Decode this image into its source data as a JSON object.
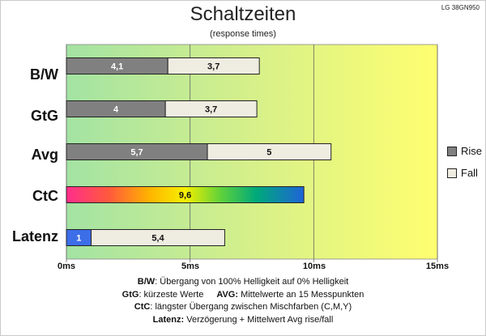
{
  "model": "LG 38GN950",
  "chart_data": {
    "type": "bar",
    "orientation": "horizontal",
    "stacked": true,
    "title": "Schaltzeiten",
    "subtitle": "(response times)",
    "categories": [
      "B/W",
      "GtG",
      "Avg",
      "CtC",
      "Latenz"
    ],
    "series": [
      {
        "name": "Rise",
        "values": [
          4.1,
          4,
          5.7,
          null,
          1
        ],
        "labels": [
          "4,1",
          "4",
          "5,7",
          "",
          "1"
        ]
      },
      {
        "name": "Fall",
        "values": [
          3.7,
          3.7,
          5,
          null,
          5.4
        ],
        "labels": [
          "3,7",
          "3,7",
          "5",
          "",
          "5,4"
        ]
      },
      {
        "name": "",
        "values": [
          null,
          null,
          null,
          9.6,
          null
        ],
        "labels": [
          "",
          "",
          "",
          "9,6",
          ""
        ]
      }
    ],
    "xlim": [
      0,
      15
    ],
    "xticks": [
      "0ms",
      "5ms",
      "10ms",
      "15ms"
    ],
    "grid": "vertical",
    "legend": "right",
    "colors": {
      "rise": "#808080",
      "fall": "#efece1",
      "latency_rise": "#3c6ee8",
      "background_from": "#a3e3a3",
      "background_to": "#ffff70"
    }
  },
  "notes": {
    "bw_key": "B/W",
    "bw_text": ":  Übergang von 100% Helligkeit auf 0% Helligkeit",
    "gtg_key": "GtG",
    "gtg_text": ": kürzeste  Werte",
    "avg_key": "AVG:",
    "avg_text": " Mittelwerte  an 15 Messpunkten",
    "ctc_key": "CtC",
    "ctc_text": ": längster Übergang  zwischen Mischfarben  (C,M,Y)",
    "lat_key": "Latenz:",
    "lat_text": " Verzögerung  + Mittelwert Avg rise/fall"
  }
}
